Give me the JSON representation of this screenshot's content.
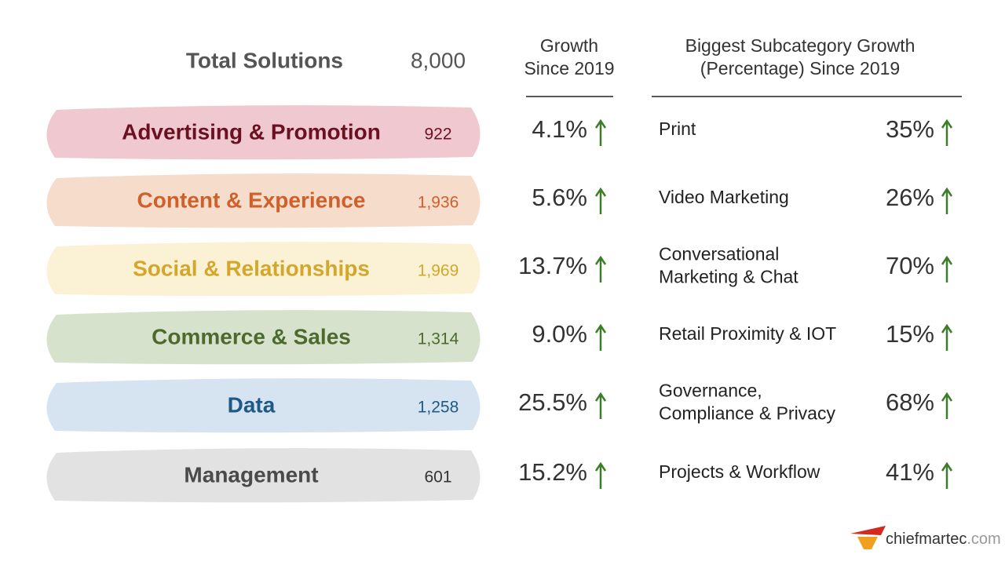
{
  "header": {
    "label": "Total Solutions",
    "total": "8,000",
    "growth_heading": [
      "Growth",
      "Since 2019"
    ],
    "subcategory_heading": [
      "Biggest Subcategory Growth",
      "(Percentage) Since 2019"
    ]
  },
  "rows": [
    {
      "name": "Advertising & Promotion",
      "count": "922",
      "growth": "4.1%",
      "subcategory": [
        "Print"
      ],
      "subcategory_growth": "35%",
      "color": "#6b1020",
      "background": "#efc9cf"
    },
    {
      "name": "Content & Experience",
      "count": "1,936",
      "growth": "5.6%",
      "subcategory": [
        "Video Marketing"
      ],
      "subcategory_growth": "26%",
      "color": "#d0602a",
      "background": "#f5dccb"
    },
    {
      "name": "Social & Relationships",
      "count": "1,969",
      "growth": "13.7%",
      "subcategory": [
        "Conversational",
        "Marketing & Chat"
      ],
      "subcategory_growth": "70%",
      "color": "#d4a72c",
      "background": "#fbf1d4"
    },
    {
      "name": "Commerce & Sales",
      "count": "1,314",
      "growth": "9.0%",
      "subcategory": [
        "Retail Proximity & IOT"
      ],
      "subcategory_growth": "15%",
      "color": "#4c6a2e",
      "background": "#d7e2cc"
    },
    {
      "name": "Data",
      "count": "1,258",
      "growth": "25.5%",
      "subcategory": [
        "Governance,",
        "Compliance & Privacy"
      ],
      "subcategory_growth": "68%",
      "color": "#1e5a86",
      "background": "#d6e3f0"
    },
    {
      "name": "Management",
      "count": "601",
      "growth": "15.2%",
      "subcategory": [
        "Projects & Workflow"
      ],
      "subcategory_growth": "41%",
      "color": "#4a4a4a",
      "background": "#e2e2e2"
    }
  ],
  "footer": {
    "logo": [
      "chiefmartec",
      ".com"
    ]
  }
}
